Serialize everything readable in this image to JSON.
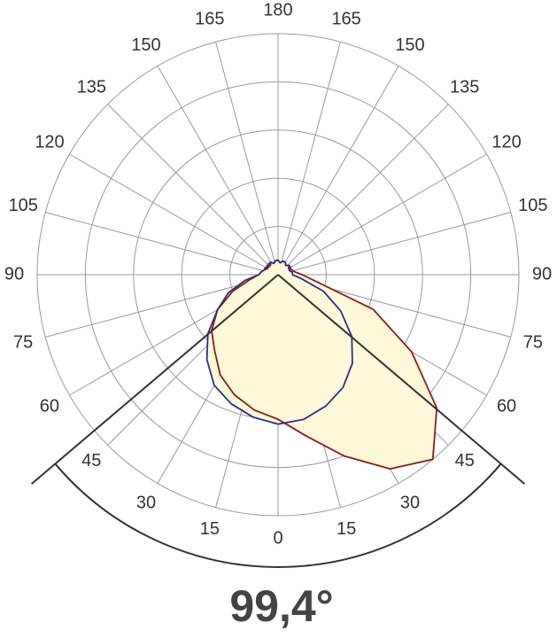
{
  "chart_data": {
    "type": "polar",
    "theta": [
      -180,
      -170,
      -160,
      -150,
      -140,
      -130,
      -120,
      -110,
      -100,
      -90,
      -80,
      -70,
      -60,
      -50,
      -40,
      -30,
      -20,
      -10,
      0,
      10,
      20,
      30,
      40,
      50,
      60,
      70,
      80,
      90,
      100,
      110,
      120,
      130,
      140,
      150,
      160,
      170,
      180
    ],
    "series": [
      {
        "color": "#8b1c1c",
        "values": [
          6,
          6,
          5,
          6,
          5,
          6,
          5,
          6,
          7,
          8,
          12,
          20,
          29,
          36,
          41,
          48,
          53,
          57,
          60,
          68,
          80,
          93,
          100,
          86,
          64,
          42,
          16,
          10,
          7,
          6,
          5,
          6,
          5,
          6,
          6,
          5,
          6
        ]
      },
      {
        "color": "#2b2f8c",
        "values": [
          6,
          6,
          5,
          6,
          6,
          5,
          6,
          6,
          7,
          8,
          14,
          22,
          29,
          38,
          46,
          53,
          57,
          60,
          62,
          61,
          58,
          54,
          48,
          40,
          30,
          20,
          10,
          6,
          6,
          5,
          6,
          6,
          5,
          6,
          6,
          5,
          6
        ]
      }
    ],
    "fill": "#fdf8d8",
    "rlim": [
      0,
      100
    ],
    "rticks": [
      20,
      40,
      60,
      80,
      100
    ],
    "thetaticks": [
      0,
      15,
      30,
      45,
      60,
      75,
      90,
      105,
      120,
      135,
      150,
      165,
      180
    ],
    "grid": true,
    "beam_angle": {
      "value": 99.4,
      "label": "99,4°"
    }
  }
}
